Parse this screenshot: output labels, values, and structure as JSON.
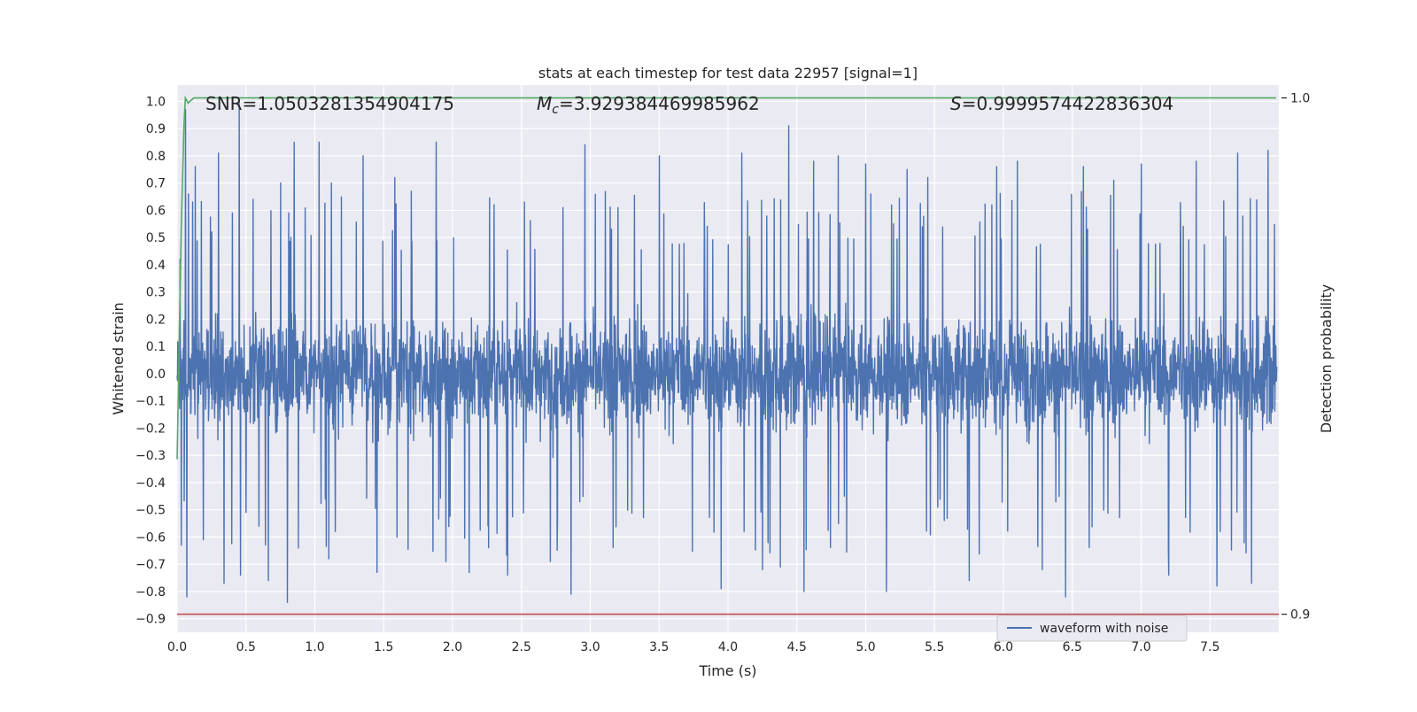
{
  "chart_data": {
    "type": "line",
    "title": "stats at each timestep for test data 22957 [signal=1]",
    "xlabel": "Time (s)",
    "ylabel": "Whitened strain",
    "y2label": "Detection probability",
    "xlim": [
      0.0,
      8.0
    ],
    "ylim": [
      -0.95,
      1.06
    ],
    "y2lim": [
      0.8965,
      1.0025
    ],
    "xticks": [
      "0.0",
      "0.5",
      "1.0",
      "1.5",
      "2.0",
      "2.5",
      "3.0",
      "3.5",
      "4.0",
      "4.5",
      "5.0",
      "5.5",
      "6.0",
      "6.5",
      "7.0",
      "7.5"
    ],
    "yticks": [
      "1.0",
      "0.9",
      "0.8",
      "0.7",
      "0.6",
      "0.5",
      "0.4",
      "0.3",
      "0.2",
      "0.1",
      "0.0",
      "−0.1",
      "−0.2",
      "−0.3",
      "−0.4",
      "−0.5",
      "−0.6",
      "−0.7",
      "−0.8",
      "−0.9"
    ],
    "y2ticks": [
      "1.0",
      "0.9"
    ],
    "grid": true,
    "legend_position": "bottom-right",
    "annotations": {
      "snr": "SNR=1.0503281354904175",
      "mc_symbol": "M",
      "mc_sub": "c",
      "mc_value": "=3.929384469985962",
      "s_symbol": "S",
      "s_value": "=0.9999574422836304"
    },
    "series": [
      {
        "name": "waveform with noise",
        "color": "#4c72b0",
        "style": "dense noise, mostly within ±0.35 with spikes",
        "spikes": [
          [
            0.02,
            0.42
          ],
          [
            0.03,
            -0.63
          ],
          [
            0.06,
            0.97
          ],
          [
            0.07,
            -0.82
          ],
          [
            0.08,
            0.66
          ],
          [
            0.13,
            0.76
          ],
          [
            0.19,
            -0.61
          ],
          [
            0.25,
            0.52
          ],
          [
            0.3,
            0.81
          ],
          [
            0.34,
            -0.77
          ],
          [
            0.4,
            0.59
          ],
          [
            0.45,
            1.0
          ],
          [
            0.46,
            -0.74
          ],
          [
            0.55,
            0.64
          ],
          [
            0.66,
            -0.76
          ],
          [
            0.75,
            0.7
          ],
          [
            0.8,
            -0.84
          ],
          [
            0.85,
            0.85
          ],
          [
            1.03,
            0.85
          ],
          [
            1.1,
            -0.68
          ],
          [
            1.12,
            0.7
          ],
          [
            1.35,
            0.8
          ],
          [
            1.45,
            -0.73
          ],
          [
            1.58,
            0.72
          ],
          [
            1.7,
            0.67
          ],
          [
            1.88,
            0.85
          ],
          [
            1.95,
            -0.69
          ],
          [
            2.12,
            -0.73
          ],
          [
            2.3,
            0.62
          ],
          [
            2.4,
            -0.74
          ],
          [
            2.52,
            0.63
          ],
          [
            2.71,
            -0.69
          ],
          [
            2.8,
            0.61
          ],
          [
            2.86,
            -0.81
          ],
          [
            2.96,
            0.84
          ],
          [
            3.2,
            0.61
          ],
          [
            3.5,
            0.8
          ],
          [
            3.95,
            -0.79
          ],
          [
            4.1,
            0.81
          ],
          [
            4.25,
            -0.72
          ],
          [
            4.38,
            -0.71
          ],
          [
            4.44,
            0.91
          ],
          [
            4.55,
            -0.8
          ],
          [
            4.62,
            0.78
          ],
          [
            4.8,
            0.8
          ],
          [
            5.0,
            0.77
          ],
          [
            5.15,
            -0.8
          ],
          [
            5.3,
            0.75
          ],
          [
            5.45,
            0.72
          ],
          [
            5.75,
            -0.76
          ],
          [
            5.95,
            0.76
          ],
          [
            6.1,
            0.78
          ],
          [
            6.28,
            -0.72
          ],
          [
            6.45,
            -0.82
          ],
          [
            6.58,
            0.76
          ],
          [
            6.8,
            0.71
          ],
          [
            7.0,
            0.77
          ],
          [
            7.2,
            -0.74
          ],
          [
            7.4,
            0.78
          ],
          [
            7.55,
            -0.78
          ],
          [
            7.7,
            0.81
          ],
          [
            7.8,
            -0.77
          ],
          [
            7.92,
            0.82
          ]
        ]
      },
      {
        "name": "",
        "color": "#55a868",
        "axis": "right",
        "x": [
          0.0,
          0.03,
          0.05,
          0.06,
          0.08,
          0.12,
          7.98
        ],
        "y": [
          0.93,
          0.975,
          0.995,
          1.0,
          0.999,
          1.0,
          1.0
        ]
      },
      {
        "name": "",
        "color": "#c44e52",
        "axis": "right",
        "x": [
          0.0,
          8.0
        ],
        "y": [
          0.9,
          0.9
        ]
      }
    ]
  }
}
